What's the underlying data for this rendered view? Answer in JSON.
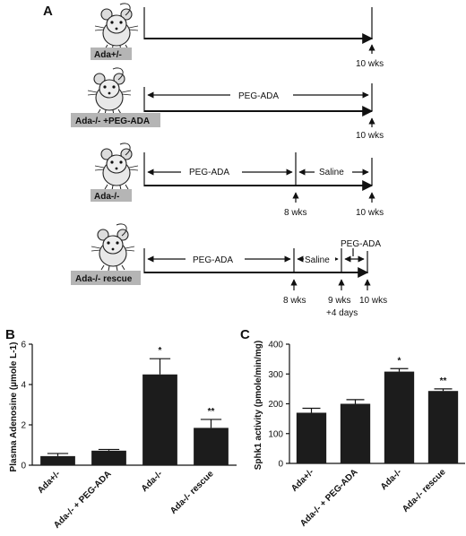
{
  "panels": {
    "a": "A",
    "b": "B",
    "c": "C"
  },
  "timeline": {
    "groups": [
      {
        "label": "Ada+/-",
        "segments": [],
        "ticks": [
          "10 wks"
        ]
      },
      {
        "label": "Ada-/- +PEG-ADA",
        "segments": [
          "PEG-ADA"
        ],
        "ticks": [
          "10 wks"
        ]
      },
      {
        "label": "Ada-/-",
        "segments": [
          "PEG-ADA",
          "Saline"
        ],
        "ticks": [
          "8 wks",
          "10 wks"
        ]
      },
      {
        "label": "Ada-/- rescue",
        "segments": [
          "PEG-ADA",
          "Saline",
          "PEG-ADA"
        ],
        "ticks": [
          "8 wks",
          "9 wks",
          "+4 days",
          "10 wks"
        ]
      }
    ]
  },
  "chart_data": [
    {
      "type": "bar",
      "categories": [
        "Ada+/-",
        "Ada-/- + PEG-ADA",
        "Ada-/-",
        "Ada-/- rescue"
      ],
      "values": [
        0.45,
        0.72,
        4.5,
        1.85
      ],
      "errors": [
        0.13,
        0.06,
        0.78,
        0.42
      ],
      "significance": [
        "",
        "",
        "*",
        "**"
      ],
      "ylabel": "Plasma Adenosine (µmole L-1)",
      "ylim": [
        0,
        6
      ],
      "yticks": [
        0,
        2,
        4,
        6
      ]
    },
    {
      "type": "bar",
      "categories": [
        "Ada+/-",
        "Ada-/- + PEG-ADA",
        "Ada-/-",
        "Ada-/- rescue"
      ],
      "values": [
        170,
        200,
        308,
        243
      ],
      "errors": [
        15,
        14,
        10,
        7
      ],
      "significance": [
        "",
        "",
        "*",
        "**"
      ],
      "ylabel": "Sphk1 activity (pmole/min/mg)",
      "ylim": [
        0,
        400
      ],
      "yticks": [
        0,
        100,
        200,
        300,
        400
      ]
    }
  ]
}
